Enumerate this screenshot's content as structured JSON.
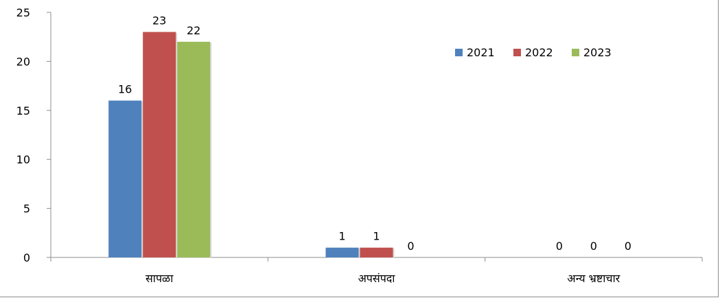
{
  "chart_data": {
    "type": "bar",
    "title": "",
    "xlabel": "",
    "ylabel": "",
    "categories": [
      "सापळा",
      "अपसंपदा",
      "अन्य भ्रष्टाचार"
    ],
    "series": [
      {
        "name": "2021",
        "values": [
          16,
          1,
          0
        ],
        "color": "#4f81bd"
      },
      {
        "name": "2022",
        "values": [
          23,
          1,
          0
        ],
        "color": "#c0504d"
      },
      {
        "name": "2023",
        "values": [
          22,
          0,
          0
        ],
        "color": "#9bbb59"
      }
    ],
    "data_labels": true,
    "ylim": [
      0,
      25
    ],
    "yticks": [
      0,
      5,
      10,
      15,
      20,
      25
    ],
    "grid": false,
    "legend_position": "top-right"
  }
}
